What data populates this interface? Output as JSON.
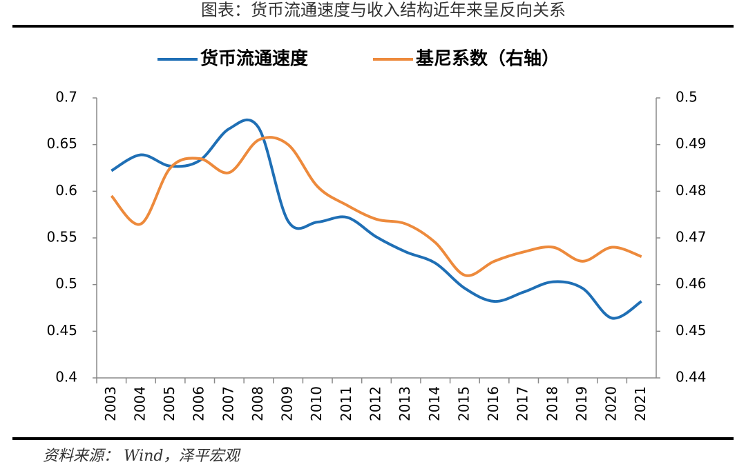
{
  "chart_data": {
    "type": "line",
    "title": "图表：货币流通速度与收入结构近年来呈反向关系",
    "source": "资料来源： Wind，泽平宏观",
    "categories": [
      "2003",
      "2004",
      "2005",
      "2006",
      "2007",
      "2008",
      "2009",
      "2010",
      "2011",
      "2012",
      "2013",
      "2014",
      "2015",
      "2016",
      "2017",
      "2018",
      "2019",
      "2020",
      "2021"
    ],
    "series": [
      {
        "name": "货币流通速度",
        "color": "#1f6fb5",
        "values": [
          0.622,
          0.639,
          0.627,
          0.633,
          0.667,
          0.668,
          0.568,
          0.567,
          0.572,
          0.551,
          0.535,
          0.523,
          0.496,
          0.482,
          0.492,
          0.503,
          0.496,
          0.464,
          0.482
        ]
      },
      {
        "name": "基尼系数（右轴）",
        "color": "#ed8a3c",
        "axis": "y2",
        "values": [
          0.479,
          0.473,
          0.485,
          0.487,
          0.484,
          0.491,
          0.49,
          0.481,
          0.477,
          0.474,
          0.473,
          0.469,
          0.462,
          0.465,
          0.467,
          0.468,
          0.465,
          0.468,
          0.466
        ]
      }
    ],
    "ylim": [
      0.4,
      0.7
    ],
    "yticks": [
      0.4,
      0.45,
      0.5,
      0.55,
      0.6,
      0.65,
      0.7
    ],
    "y2lim": [
      0.44,
      0.5
    ],
    "y2ticks": [
      0.44,
      0.45,
      0.46,
      0.47,
      0.48,
      0.49,
      0.5
    ],
    "grid": false,
    "smooth": true,
    "legend": "top"
  }
}
